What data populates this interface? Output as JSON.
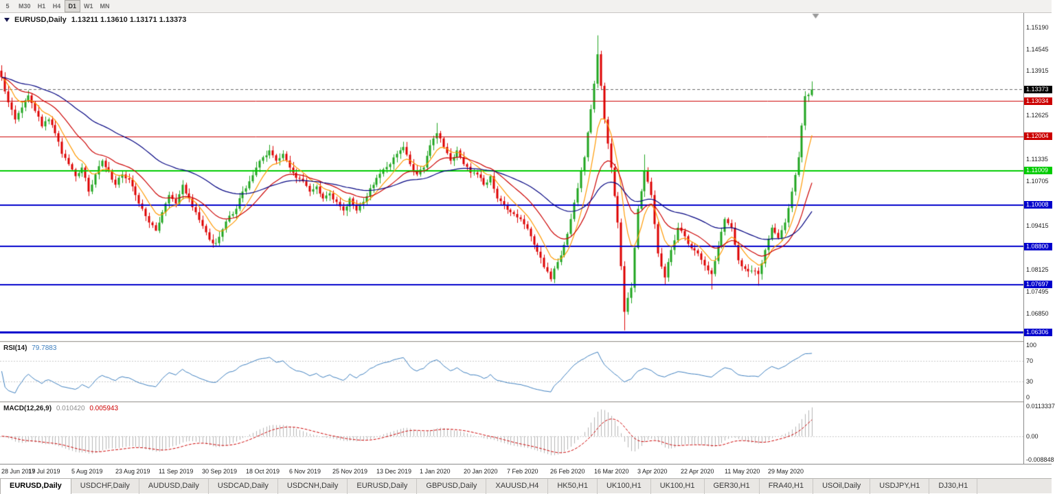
{
  "toolbar": {
    "timeframes": [
      "5",
      "M30",
      "H1",
      "H4",
      "D1",
      "W1",
      "MN"
    ],
    "active": "D1"
  },
  "chart": {
    "symbol_label": "EURUSD,Daily",
    "ohlc_label": "1.13211 1.13610 1.13171 1.13373"
  },
  "chart_data": {
    "type": "candlestick",
    "symbol": "EURUSD",
    "timeframe": "Daily",
    "open": 1.13211,
    "high": 1.1361,
    "low": 1.13171,
    "close": 1.13373,
    "price_range": [
      1.0605,
      1.156
    ],
    "data_width_frac": 0.795,
    "colors": {
      "bull": "#1FA51F",
      "bear": "#DD0000",
      "background": "#FFFFFF"
    },
    "y_ticks": [
      "1.15190",
      "1.14545",
      "1.13915",
      "1.12625",
      "1.11335",
      "1.10705",
      "1.09415",
      "1.08125",
      "1.07495",
      "1.06850"
    ],
    "x_labels": [
      "28 Jun 2019",
      "17 Jul 2019",
      "5 Aug 2019",
      "23 Aug 2019",
      "11 Sep 2019",
      "30 Sep 2019",
      "18 Oct 2019",
      "6 Nov 2019",
      "25 Nov 2019",
      "13 Dec 2019",
      "1 Jan 2020",
      "20 Jan 2020",
      "7 Feb 2020",
      "26 Feb 2020",
      "16 Mar 2020",
      "3 Apr 2020",
      "22 Apr 2020",
      "11 May 2020",
      "29 May 2020"
    ],
    "current_price": {
      "label": "1.13373",
      "price": 1.13373,
      "box_color": "#000000",
      "line_color": "#666666"
    },
    "hlines": [
      {
        "label": "1.13034",
        "price": 1.13034,
        "color": "#CC0000",
        "width": 1
      },
      {
        "label": "1.12004",
        "price": 1.12004,
        "color": "#CC0000",
        "width": 1
      },
      {
        "label": "1.11009",
        "price": 1.11009,
        "color": "#00CC00",
        "width": 2
      },
      {
        "label": "1.10008",
        "price": 1.10008,
        "color": "#0000CC",
        "width": 2
      },
      {
        "label": "1.08800",
        "price": 1.088,
        "color": "#0000CC",
        "width": 2
      },
      {
        "label": "1.07697",
        "price": 1.07697,
        "color": "#0000CC",
        "width": 2
      },
      {
        "label": "1.06306",
        "price": 1.06306,
        "color": "#0000CC",
        "width": 3
      }
    ],
    "moving_averages": [
      {
        "period": 8,
        "color": "#FF9900"
      },
      {
        "period": 20,
        "color": "#CC0000"
      },
      {
        "period": 52,
        "color": "#000080"
      }
    ],
    "closes": [
      1.1373,
      1.13,
      1.125,
      1.1285,
      1.132,
      1.1275,
      1.123,
      1.125,
      1.121,
      1.115,
      1.112,
      1.1085,
      1.111,
      1.104,
      1.109,
      1.113,
      1.11,
      1.106,
      1.109,
      1.1075,
      1.103,
      1.099,
      1.095,
      1.0926,
      1.098,
      1.103,
      1.1005,
      1.106,
      1.102,
      1.098,
      1.094,
      1.09,
      1.089,
      1.093,
      1.097,
      1.099,
      1.104,
      1.107,
      1.111,
      1.114,
      1.116,
      1.113,
      1.115,
      1.111,
      1.108,
      1.107,
      1.104,
      1.1055,
      1.102,
      1.1035,
      1.101,
      1.0985,
      1.102,
      1.0985,
      1.101,
      1.105,
      1.108,
      1.1105,
      1.112,
      1.115,
      1.117,
      1.112,
      1.109,
      1.111,
      1.1175,
      1.121,
      1.117,
      1.113,
      1.116,
      1.112,
      1.1095,
      1.109,
      1.106,
      1.1085,
      1.102,
      1.1,
      1.098,
      1.0965,
      1.0945,
      1.091,
      1.0865,
      1.082,
      1.0785,
      1.0835,
      1.0885,
      1.096,
      1.105,
      1.114,
      1.128,
      1.144,
      1.125,
      1.111,
      1.095,
      1.069,
      1.076,
      1.099,
      1.11,
      1.103,
      1.086,
      1.079,
      1.087,
      1.0935,
      1.091,
      1.0875,
      1.086,
      1.0825,
      1.08,
      1.088,
      1.096,
      1.0935,
      1.084,
      1.0815,
      1.081,
      1.08,
      1.087,
      1.0935,
      1.0905,
      1.095,
      1.104,
      1.114,
      1.1318,
      1.13373
    ],
    "wick_overrides": [
      {
        "i": 0,
        "open": 1.1392
      },
      {
        "i": 13,
        "low": 1.1027
      },
      {
        "i": 23,
        "low": 1.0926
      },
      {
        "i": 32,
        "low": 1.0879
      },
      {
        "i": 65,
        "high": 1.124
      },
      {
        "i": 82,
        "low": 1.0778
      },
      {
        "i": 89,
        "high": 1.1495
      },
      {
        "i": 93,
        "low": 1.0636
      },
      {
        "i": 96,
        "high": 1.1148
      },
      {
        "i": 99,
        "low": 1.077
      },
      {
        "i": 106,
        "low": 1.0755
      },
      {
        "i": 113,
        "low": 1.0766
      },
      {
        "i": 121,
        "open": 1.13211,
        "high": 1.1361,
        "low": 1.13171,
        "close": 1.13373
      }
    ]
  },
  "rsi": {
    "name": "RSI(14)",
    "value": "79.7883",
    "period": 14,
    "color": "#3C7EBE",
    "levels": [
      "100",
      "70",
      "30",
      "0"
    ],
    "level_lines": [
      70,
      30
    ]
  },
  "macd": {
    "name": "MACD(12,26,9)",
    "hist_value": "0.010420",
    "signal_value": "0.005943",
    "fast": 12,
    "slow": 26,
    "signal": 9,
    "hist_color": "#b4b4b4",
    "signal_color": "#CC0000",
    "axis_labels": [
      "0.0113337",
      "0.00",
      "-0.008848"
    ],
    "scale_max": 0.0113337,
    "scale_min": -0.008848
  },
  "tabs": {
    "active_index": 0,
    "items": [
      "EURUSD,Daily",
      "USDCHF,Daily",
      "AUDUSD,Daily",
      "USDCAD,Daily",
      "USDCNH,Daily",
      "EURUSD,Daily",
      "GBPUSD,Daily",
      "XAUUSD,H4",
      "HK50,H1",
      "UK100,H1",
      "UK100,H1",
      "GER30,H1",
      "FRA40,H1",
      "USOil,Daily",
      "USDJPY,H1",
      "DJ30,H1"
    ]
  }
}
